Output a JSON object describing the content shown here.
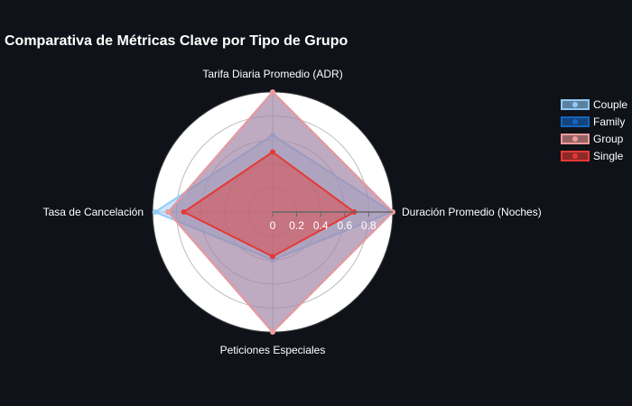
{
  "chart_data": {
    "type": "radar",
    "title": "Comparativa de Métricas Clave por Tipo de Grupo",
    "axes": [
      "Tarifa Diaria Promedio (ADR)",
      "Duración Promedio (Noches)",
      "Peticiones Especiales",
      "Tasa de Cancelación"
    ],
    "radial_range": [
      0,
      1
    ],
    "radial_ticks": [
      "0",
      "0.2",
      "0.4",
      "0.6",
      "0.8"
    ],
    "series": [
      {
        "name": "Couple",
        "values": [
          0.64,
          0.99,
          0.4,
          0.98
        ],
        "color": "#90caf9"
      },
      {
        "name": "Family",
        "values": [
          1.0,
          1.0,
          1.0,
          0.87
        ],
        "color": "#1565c0"
      },
      {
        "name": "Group",
        "values": [
          1.0,
          1.0,
          1.0,
          0.87
        ],
        "color": "#ef9a9a"
      },
      {
        "name": "Single",
        "values": [
          0.5,
          0.68,
          0.37,
          0.74
        ],
        "color": "#e53935"
      }
    ],
    "legend_position": "top-right"
  }
}
